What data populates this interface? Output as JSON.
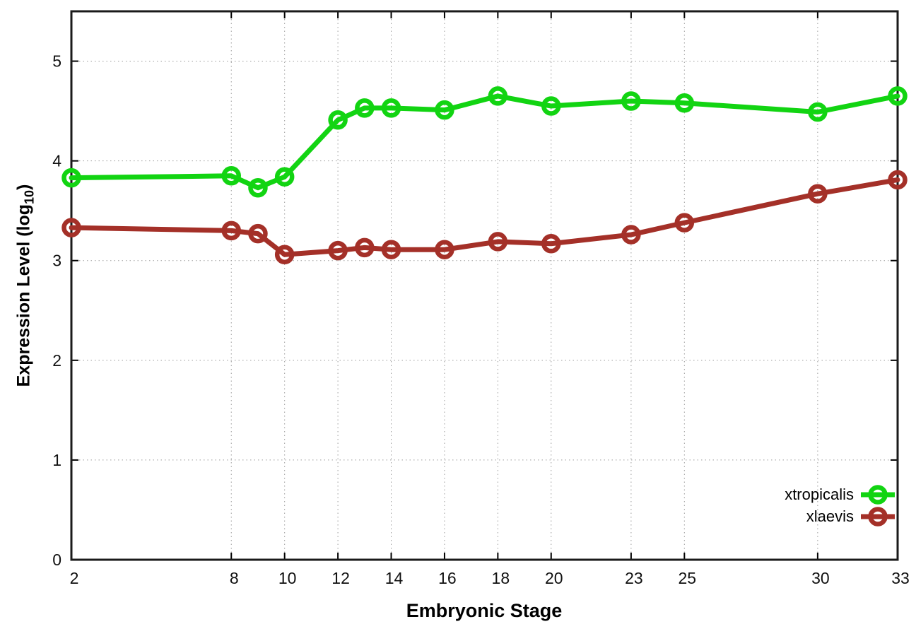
{
  "chart_data": {
    "type": "line",
    "title": "",
    "xlabel": "Embryonic Stage",
    "ylabel": "Expression Level (log10)",
    "ylabel_parts": [
      "Expression Level (log",
      "10",
      ")"
    ],
    "x": [
      2,
      8,
      9,
      10,
      12,
      13,
      14,
      16,
      18,
      20,
      23,
      25,
      30,
      33
    ],
    "series": [
      {
        "name": "xtropicalis",
        "color": "#12d412",
        "values": [
          3.83,
          3.85,
          3.73,
          3.84,
          4.41,
          4.53,
          4.53,
          4.51,
          4.65,
          4.55,
          4.6,
          4.58,
          4.49,
          4.65
        ]
      },
      {
        "name": "xlaevis",
        "color": "#a43028",
        "values": [
          3.33,
          3.3,
          3.27,
          3.06,
          3.1,
          3.13,
          3.11,
          3.11,
          3.19,
          3.17,
          3.26,
          3.38,
          3.67,
          3.81
        ]
      }
    ],
    "xlim": [
      2,
      33
    ],
    "ylim": [
      0,
      5.5
    ],
    "x_ticks": [
      2,
      8,
      10,
      12,
      14,
      16,
      18,
      20,
      23,
      25,
      30,
      33
    ],
    "x_grid": [
      8,
      10,
      12,
      14,
      16,
      18,
      20,
      23,
      25,
      30
    ],
    "y_ticks": [
      0,
      1,
      2,
      3,
      4,
      5
    ],
    "y_grid": [
      1,
      2,
      3,
      4,
      5
    ],
    "grid": true,
    "marker": "open-circle",
    "legend_position": "bottom-right"
  }
}
